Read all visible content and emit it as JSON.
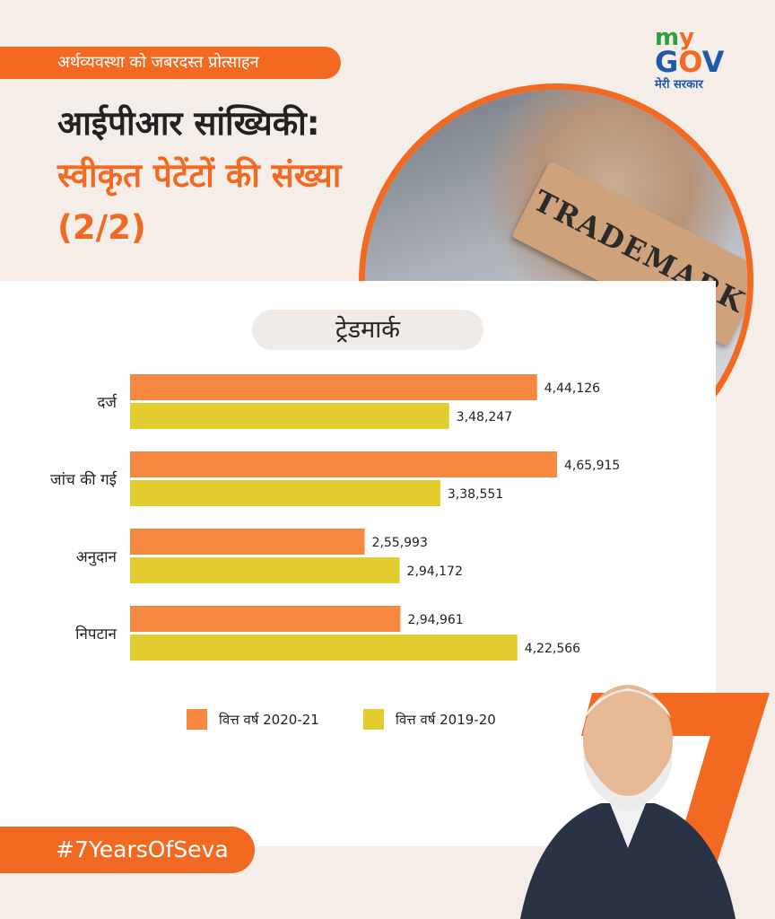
{
  "header": {
    "tag": "अर्थव्यवस्था को जबरदस्त प्रोत्साहन",
    "title_line1": "आईपीआर सांख्यिकी:",
    "title_line2": "स्वीकृत पेटेंटों की संख्या (2/2)"
  },
  "logo": {
    "my_m": "m",
    "my_y": "y",
    "gov_g": "G",
    "gov_o": "O",
    "gov_v": "V",
    "tagline": "मेरी सरकार"
  },
  "photo": {
    "stamp_text": "TRADEMARK"
  },
  "hashtag": "#7YearsOfSeva",
  "chart_data": {
    "type": "bar",
    "orientation": "horizontal",
    "title": "ट्रेडमार्क",
    "categories": [
      "दर्ज",
      "जांच की गई",
      "अनुदान",
      "निपटान"
    ],
    "series": [
      {
        "name": "वित्त वर्ष 2020-21",
        "color": "#f58840",
        "values": [
          444126,
          465915,
          255993,
          294961
        ],
        "labels": [
          "4,44,126",
          "4,65,915",
          "2,55,993",
          "2,94,961"
        ]
      },
      {
        "name": "वित्त वर्ष 2019-20",
        "color": "#e2cc2e",
        "values": [
          348247,
          338551,
          294172,
          422566
        ],
        "labels": [
          "3,48,247",
          "3,38,551",
          "2,94,172",
          "4,22,566"
        ]
      }
    ],
    "legend_position": "bottom"
  },
  "colors": {
    "accent": "#f26a21",
    "background": "#f4ede8"
  }
}
